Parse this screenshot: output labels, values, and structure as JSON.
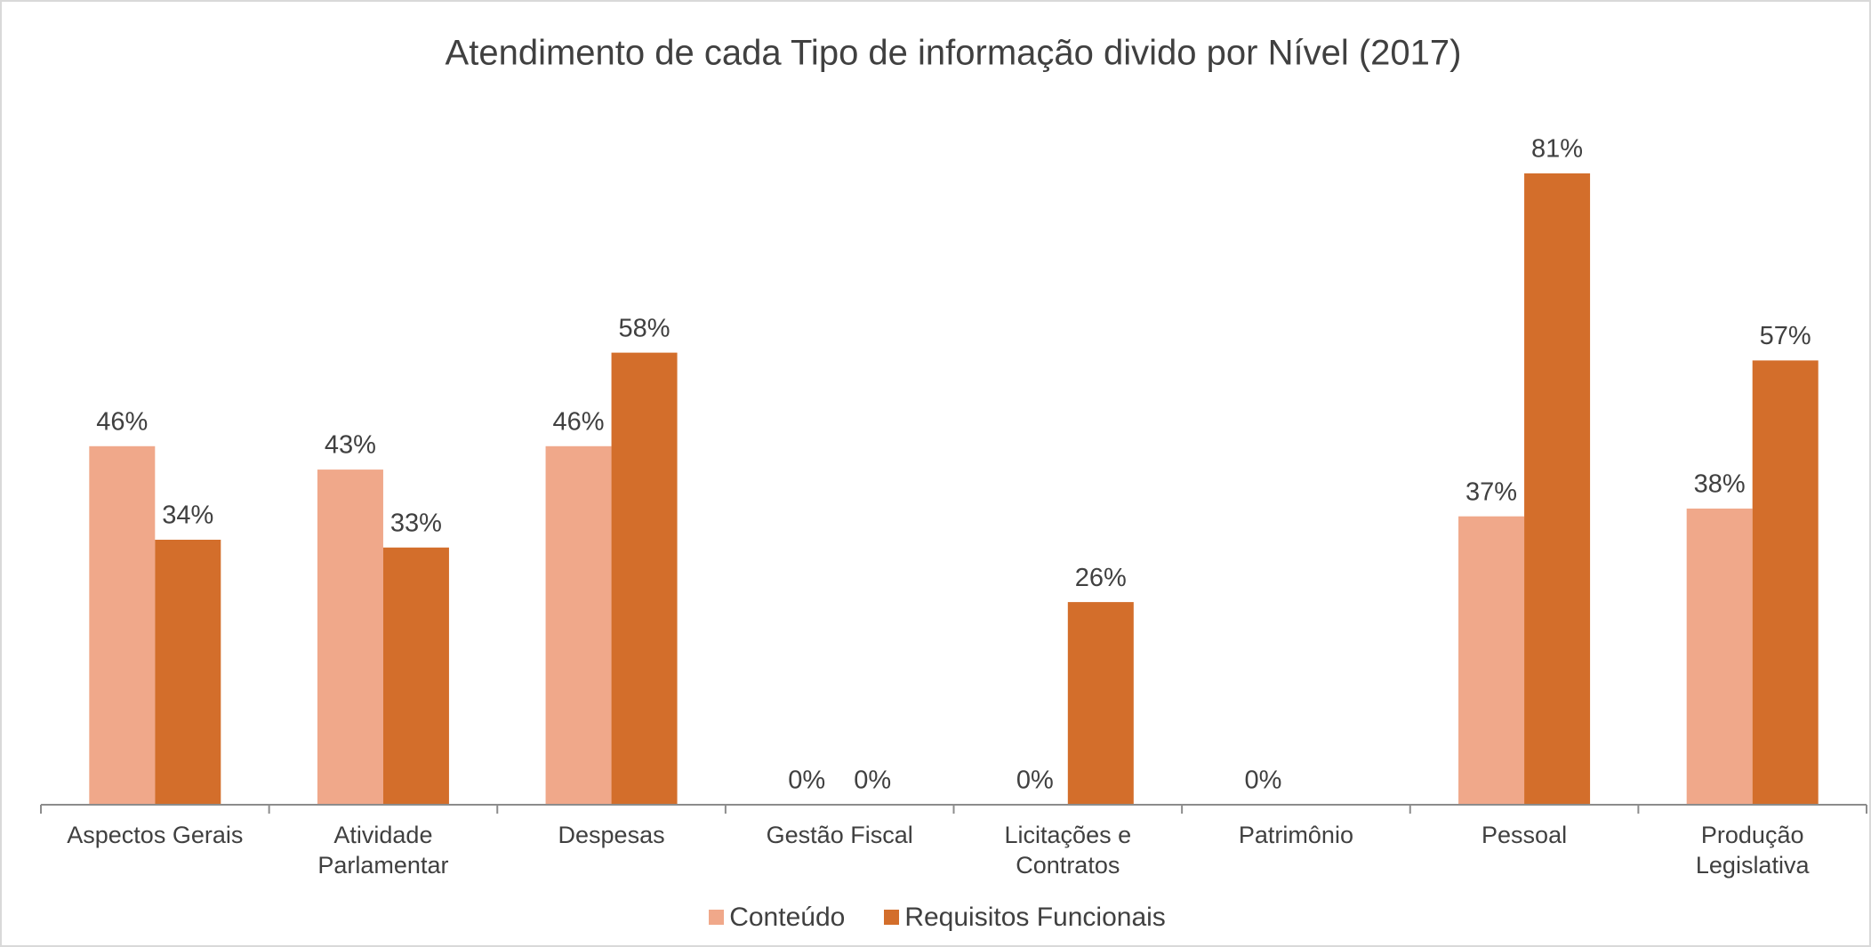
{
  "chart_data": {
    "type": "bar",
    "title": "Atendimento de cada Tipo de informação divido por Nível (2017)",
    "categories": [
      "Aspectos Gerais",
      "Atividade Parlamentar",
      "Despesas",
      "Gestão Fiscal",
      "Licitações e Contratos",
      "Patrimônio",
      "Pessoal",
      "Produção Legislativa"
    ],
    "series": [
      {
        "name": "Conteúdo",
        "color": "#f0a88a",
        "values": [
          46,
          43,
          46,
          0,
          0,
          0,
          37,
          38
        ],
        "value_labels": [
          "46%",
          "43%",
          "46%",
          "0%",
          "0%",
          "0%",
          "37%",
          "38%"
        ]
      },
      {
        "name": "Requisitos Funcionais",
        "color": "#d36e2b",
        "values": [
          34,
          33,
          58,
          0,
          26,
          null,
          81,
          57
        ],
        "value_labels": [
          "34%",
          "33%",
          "58%",
          "0%",
          "26%",
          null,
          "81%",
          "57%"
        ]
      }
    ],
    "legend": "bottom"
  }
}
